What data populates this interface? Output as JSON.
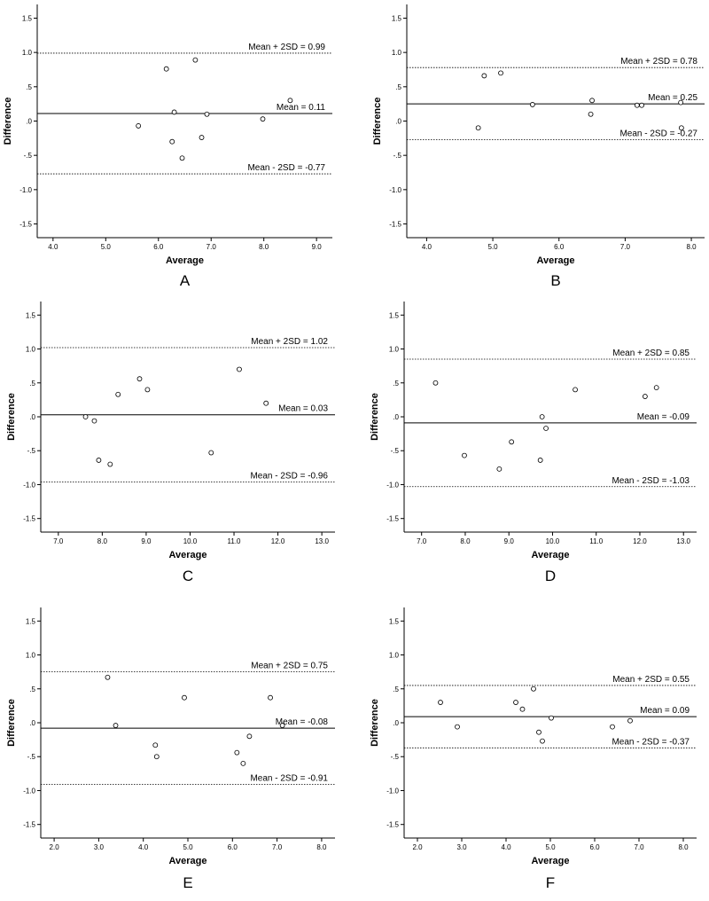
{
  "chart_data": [
    {
      "panel": "A",
      "type": "scatter",
      "xlabel": "Average",
      "ylabel": "Difference",
      "xlim": [
        3.7,
        9.3
      ],
      "ylim": [
        -1.7,
        1.7
      ],
      "xticks": [
        "4.0",
        "5.0",
        "6.0",
        "7.0",
        "8.0",
        "9.0"
      ],
      "yticks": [
        "1.5",
        "1.0",
        ".5",
        ".0",
        "-.5",
        "-1.0",
        "-1.5"
      ],
      "points": [
        [
          5.62,
          -0.07
        ],
        [
          6.15,
          0.76
        ],
        [
          6.26,
          -0.3
        ],
        [
          6.3,
          0.13
        ],
        [
          6.45,
          -0.54
        ],
        [
          6.7,
          0.89
        ],
        [
          6.82,
          -0.24
        ],
        [
          6.92,
          0.1
        ],
        [
          7.98,
          0.03
        ],
        [
          8.5,
          0.3
        ]
      ],
      "lines": [
        {
          "label": "Mean + 2SD = 0.99",
          "value": 0.99,
          "style": "dotted"
        },
        {
          "label": "Mean = 0.11",
          "value": 0.11,
          "style": "solid"
        },
        {
          "label": "Mean - 2SD = -0.77",
          "value": -0.77,
          "style": "dotted"
        }
      ]
    },
    {
      "panel": "B",
      "type": "scatter",
      "xlabel": "Average",
      "ylabel": "Difference",
      "xlim": [
        3.7,
        8.2
      ],
      "ylim": [
        -1.7,
        1.7
      ],
      "xticks": [
        "4.0",
        "5.0",
        "6.0",
        "7.0",
        "8.0"
      ],
      "yticks": [
        "1.5",
        "1.0",
        ".5",
        ".0",
        "-.5",
        "-1.0",
        "-1.5"
      ],
      "points": [
        [
          4.78,
          -0.1
        ],
        [
          4.87,
          0.66
        ],
        [
          5.12,
          0.7
        ],
        [
          5.6,
          0.24
        ],
        [
          6.48,
          0.1
        ],
        [
          6.5,
          0.3
        ],
        [
          7.18,
          0.23
        ],
        [
          7.25,
          0.23
        ],
        [
          7.84,
          0.27
        ],
        [
          7.85,
          -0.1
        ]
      ],
      "lines": [
        {
          "label": "Mean + 2SD = 0.78",
          "value": 0.78,
          "style": "dotted"
        },
        {
          "label": "Mean = 0.25",
          "value": 0.25,
          "style": "solid"
        },
        {
          "label": "Mean - 2SD = -0.27",
          "value": -0.27,
          "style": "dotted"
        }
      ]
    },
    {
      "panel": "C",
      "type": "scatter",
      "xlabel": "Average",
      "ylabel": "Difference",
      "xlim": [
        6.6,
        13.3
      ],
      "ylim": [
        -1.7,
        1.7
      ],
      "xticks": [
        "7.0",
        "8.0",
        "9.0",
        "10.0",
        "11.0",
        "12.0",
        "13.0"
      ],
      "yticks": [
        "1.5",
        "1.0",
        ".5",
        ".0",
        "-.5",
        "-1.0",
        "-1.5"
      ],
      "points": [
        [
          7.62,
          0.0
        ],
        [
          7.82,
          -0.06
        ],
        [
          7.92,
          -0.64
        ],
        [
          8.18,
          -0.7
        ],
        [
          8.36,
          0.33
        ],
        [
          8.85,
          0.56
        ],
        [
          9.03,
          0.4
        ],
        [
          10.48,
          -0.53
        ],
        [
          11.12,
          0.7
        ],
        [
          11.73,
          0.2
        ]
      ],
      "lines": [
        {
          "label": "Mean + 2SD = 1.02",
          "value": 1.02,
          "style": "dotted"
        },
        {
          "label": "Mean = 0.03",
          "value": 0.03,
          "style": "solid"
        },
        {
          "label": "Mean - 2SD = -0.96",
          "value": -0.96,
          "style": "dotted"
        }
      ]
    },
    {
      "panel": "D",
      "type": "scatter",
      "xlabel": "Average",
      "ylabel": "Difference",
      "xlim": [
        6.6,
        13.3
      ],
      "ylim": [
        -1.7,
        1.7
      ],
      "xticks": [
        "7.0",
        "8.0",
        "9.0",
        "10.0",
        "11.0",
        "12.0",
        "13.0"
      ],
      "yticks": [
        "1.5",
        "1.0",
        ".5",
        ".0",
        "-.5",
        "-1.0",
        "-1.5"
      ],
      "points": [
        [
          7.32,
          0.5
        ],
        [
          7.98,
          -0.57
        ],
        [
          8.78,
          -0.77
        ],
        [
          9.06,
          -0.37
        ],
        [
          9.72,
          -0.64
        ],
        [
          9.76,
          0.0
        ],
        [
          9.85,
          -0.17
        ],
        [
          10.52,
          0.4
        ],
        [
          12.12,
          0.3
        ],
        [
          12.38,
          0.43
        ]
      ],
      "lines": [
        {
          "label": "Mean + 2SD = 0.85",
          "value": 0.85,
          "style": "dotted"
        },
        {
          "label": "Mean = -0.09",
          "value": -0.09,
          "style": "solid"
        },
        {
          "label": "Mean - 2SD = -1.03",
          "value": -1.03,
          "style": "dotted"
        }
      ]
    },
    {
      "panel": "E",
      "type": "scatter",
      "xlabel": "Average",
      "ylabel": "Difference",
      "xlim": [
        1.7,
        8.3
      ],
      "ylim": [
        -1.7,
        1.7
      ],
      "xticks": [
        "2.0",
        "3.0",
        "4.0",
        "5.0",
        "6.0",
        "7.0",
        "8.0"
      ],
      "yticks": [
        "1.5",
        "1.0",
        ".5",
        ".0",
        "-.5",
        "-1.0",
        "-1.5"
      ],
      "points": [
        [
          3.2,
          0.67
        ],
        [
          3.38,
          -0.04
        ],
        [
          4.27,
          -0.33
        ],
        [
          4.3,
          -0.5
        ],
        [
          4.92,
          0.37
        ],
        [
          6.1,
          -0.44
        ],
        [
          6.24,
          -0.6
        ],
        [
          6.38,
          -0.2
        ],
        [
          6.85,
          0.37
        ],
        [
          7.12,
          -0.04
        ]
      ],
      "lines": [
        {
          "label": "Mean + 2SD = 0.75",
          "value": 0.75,
          "style": "dotted"
        },
        {
          "label": "Mean = -0.08",
          "value": -0.08,
          "style": "solid"
        },
        {
          "label": "Mean - 2SD = -0.91",
          "value": -0.91,
          "style": "dotted"
        }
      ]
    },
    {
      "panel": "F",
      "type": "scatter",
      "xlabel": "Average",
      "ylabel": "Difference",
      "xlim": [
        1.7,
        8.3
      ],
      "ylim": [
        -1.7,
        1.7
      ],
      "xticks": [
        "2.0",
        "3.0",
        "4.0",
        "5.0",
        "6.0",
        "7.0",
        "8.0"
      ],
      "yticks": [
        "1.5",
        "1.0",
        ".5",
        ".0",
        "-.5",
        "-1.0",
        "-1.5"
      ],
      "points": [
        [
          2.52,
          0.3
        ],
        [
          2.9,
          -0.06
        ],
        [
          4.22,
          0.3
        ],
        [
          4.37,
          0.2
        ],
        [
          4.62,
          0.5
        ],
        [
          4.74,
          -0.14
        ],
        [
          4.82,
          -0.27
        ],
        [
          5.02,
          0.07
        ],
        [
          6.4,
          -0.06
        ],
        [
          6.8,
          0.03
        ]
      ],
      "lines": [
        {
          "label": "Mean + 2SD = 0.55",
          "value": 0.55,
          "style": "dotted"
        },
        {
          "label": "Mean = 0.09",
          "value": 0.09,
          "style": "solid"
        },
        {
          "label": "Mean - 2SD = -0.37",
          "value": -0.37,
          "style": "dotted"
        }
      ]
    }
  ]
}
